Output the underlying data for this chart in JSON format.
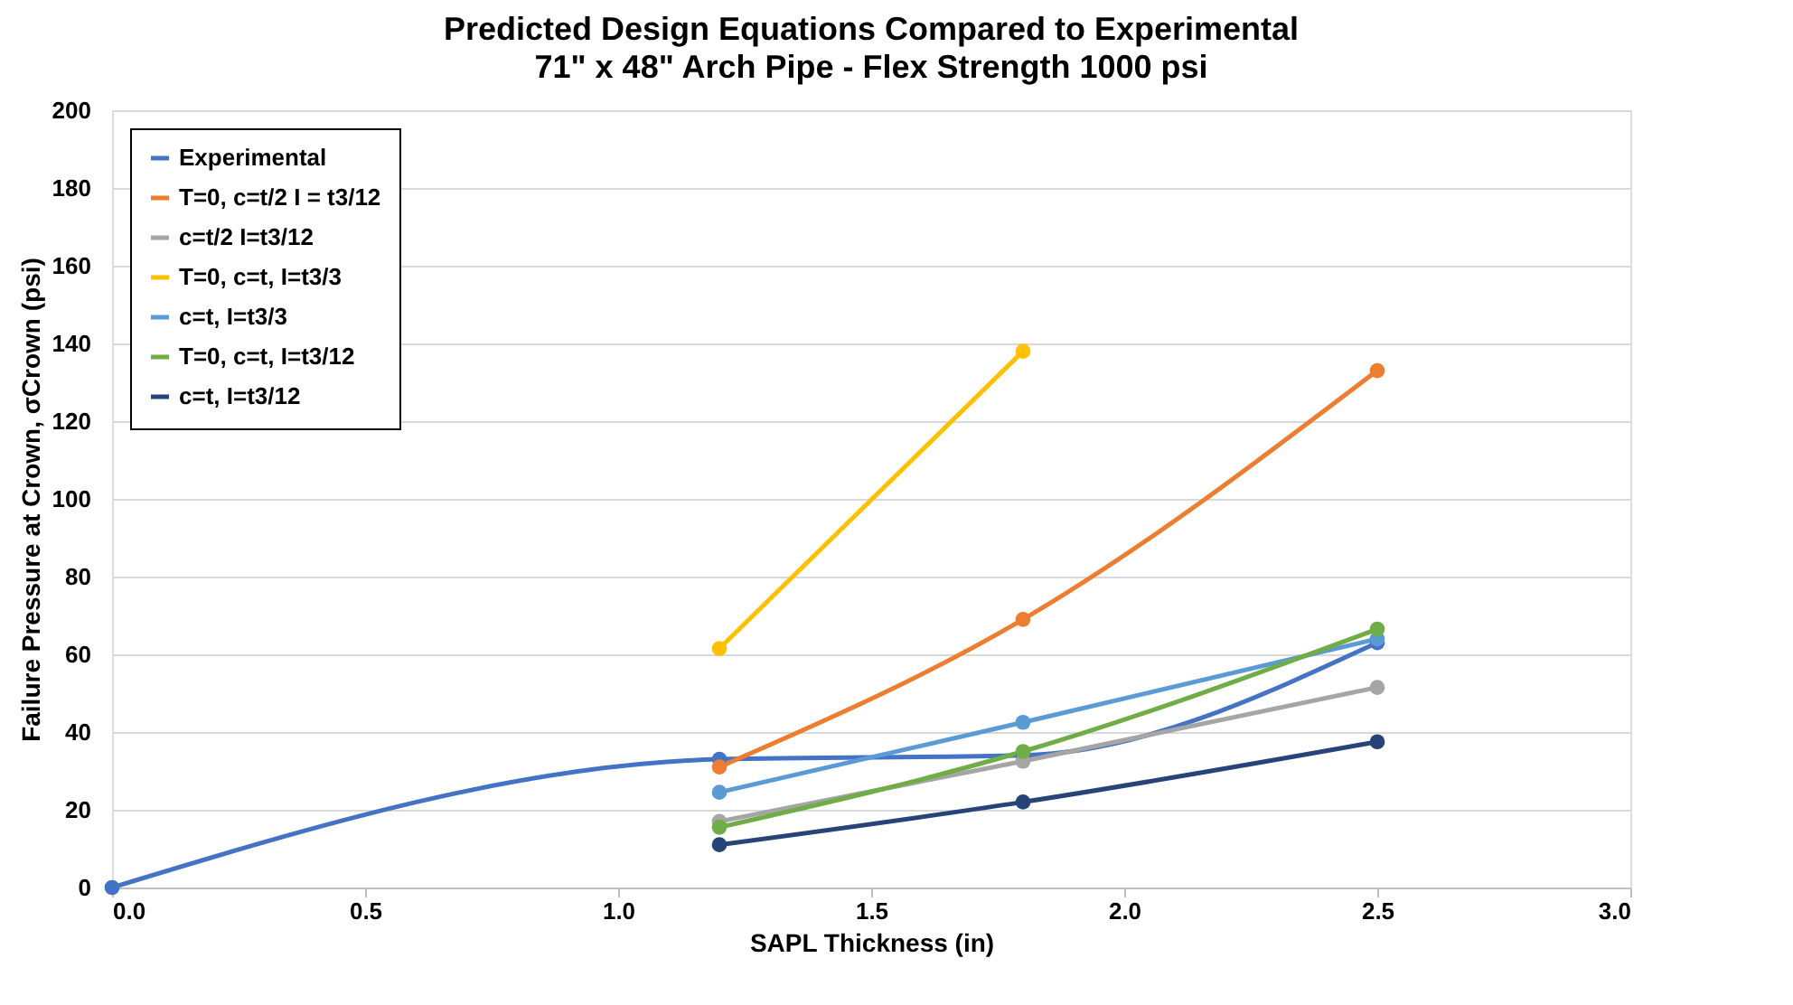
{
  "chart_data": {
    "type": "line",
    "title": "Predicted Design Equations Compared to Experimental",
    "subtitle": "71\" x 48\" Arch Pipe - Flex Strength 1000 psi",
    "xlabel": "SAPL Thickness (in)",
    "ylabel": "Failure Pressure at Crown, σCrown (psi)",
    "x": [
      1.2,
      1.8,
      2.5
    ],
    "series": [
      {
        "name": "Experimental",
        "color": "#4472c4",
        "x": [
          0,
          1.2,
          1.8,
          2.5
        ],
        "values": [
          0,
          33,
          34,
          63
        ]
      },
      {
        "name": "T=0, c=t/2 I = t3/12",
        "color": "#ed7d31",
        "values": [
          31,
          69,
          133
        ]
      },
      {
        "name": "c=t/2 I=t3/12",
        "color": "#a5a5a5",
        "values": [
          17,
          32.5,
          51.5
        ]
      },
      {
        "name": "T=0, c=t, I=t3/3",
        "color": "#ffc000",
        "values": [
          61.5,
          138,
          null
        ]
      },
      {
        "name": "c=t, I=t3/3",
        "color": "#5b9bd5",
        "values": [
          24.5,
          42.5,
          64
        ]
      },
      {
        "name": "T=0, c=t, I=t3/12",
        "color": "#70ad47",
        "values": [
          15.5,
          35,
          66.5
        ]
      },
      {
        "name": "c=t, I=t3/12",
        "color": "#264478",
        "values": [
          11,
          22,
          37.5
        ]
      }
    ],
    "xlim": [
      0,
      3
    ],
    "xticks": [
      {
        "value": 0,
        "label": "0.0"
      },
      {
        "value": 0.5,
        "label": "0.5"
      },
      {
        "value": 1,
        "label": "1.0"
      },
      {
        "value": 1.5,
        "label": "1.5"
      },
      {
        "value": 2,
        "label": "2.0"
      },
      {
        "value": 2.5,
        "label": "2.5"
      },
      {
        "value": 3,
        "label": "3.0"
      }
    ],
    "ylim": [
      0,
      200
    ],
    "yticks": [
      0,
      20,
      40,
      60,
      80,
      100,
      120,
      140,
      160,
      180,
      200
    ],
    "grid": "y",
    "legend": "top left",
    "marker": "circle",
    "line_style": "solid"
  }
}
